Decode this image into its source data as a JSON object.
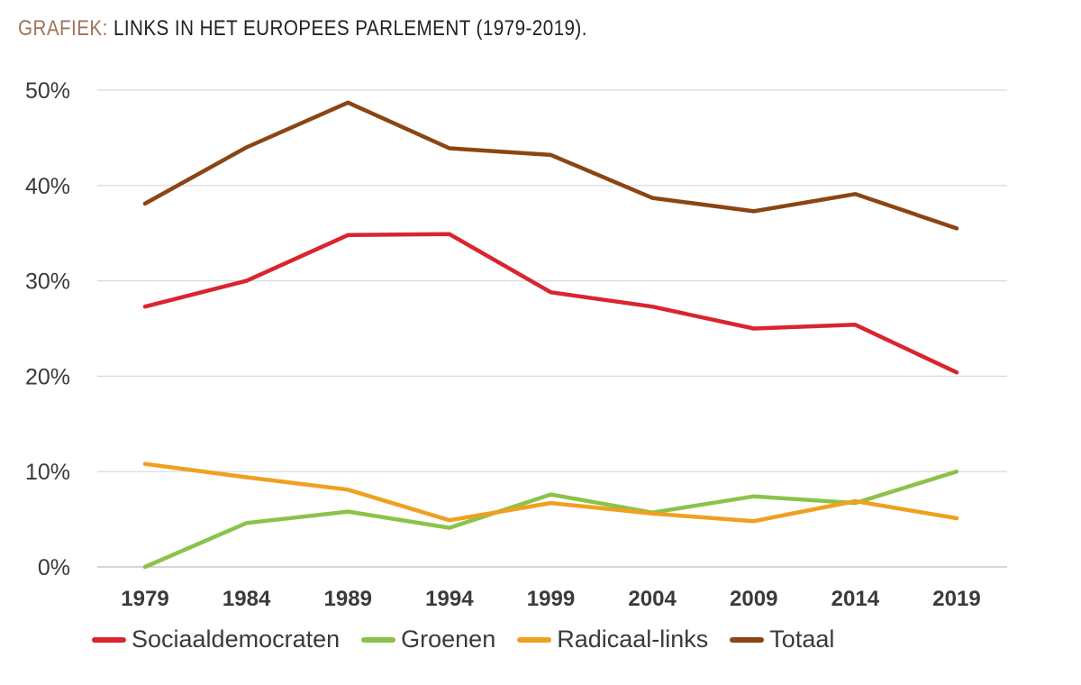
{
  "title": {
    "prefix": "GRAFIEK:",
    "text": "LINKS IN HET EUROPEES PARLEMENT (1979-2019)."
  },
  "chart_data": {
    "type": "line",
    "title": "GRAFIEK: LINKS IN HET EUROPEES PARLEMENT (1979-2019).",
    "xlabel": "",
    "ylabel": "",
    "categories": [
      "1979",
      "1984",
      "1989",
      "1994",
      "1999",
      "2004",
      "2009",
      "2014",
      "2019"
    ],
    "y_ticks": [
      "0%",
      "10%",
      "20%",
      "30%",
      "40%",
      "50%"
    ],
    "ylim": [
      0,
      50
    ],
    "grid": true,
    "legend_position": "bottom",
    "series": [
      {
        "name": "Sociaaldemocraten",
        "color": "#d9252f",
        "values": [
          27.3,
          30.0,
          34.8,
          34.9,
          28.8,
          27.3,
          25.0,
          25.4,
          20.4
        ]
      },
      {
        "name": "Groenen",
        "color": "#8bc34a",
        "values": [
          0.0,
          4.6,
          5.8,
          4.1,
          7.6,
          5.7,
          7.4,
          6.7,
          10.0
        ]
      },
      {
        "name": "Radicaal-links",
        "color": "#f0a020",
        "values": [
          10.8,
          9.4,
          8.1,
          4.9,
          6.7,
          5.6,
          4.8,
          6.9,
          5.1
        ]
      },
      {
        "name": "Totaal",
        "color": "#8b4513",
        "values": [
          38.1,
          44.0,
          48.7,
          43.9,
          43.2,
          38.7,
          37.3,
          39.1,
          35.5
        ]
      }
    ]
  }
}
